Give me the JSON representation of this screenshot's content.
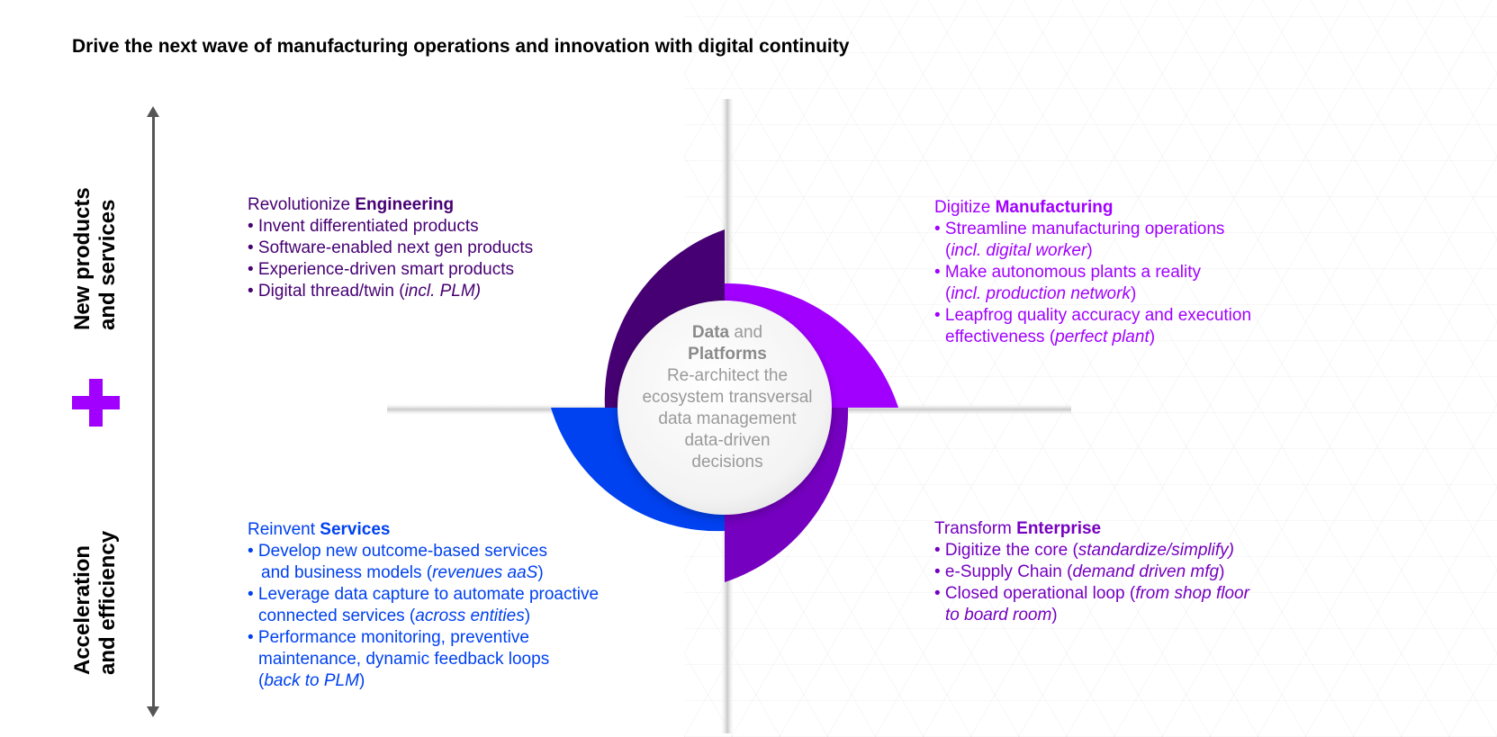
{
  "title": "Drive the next wave of manufacturing operations and innovation with digital continuity",
  "axis": {
    "top_label_line1": "New products",
    "top_label_line2": "and services",
    "bottom_label_line1": "Acceleration",
    "bottom_label_line2": "and efficiency",
    "plus_symbol": "+"
  },
  "center": {
    "bold1": "Data",
    "and": " and",
    "bold2": "Platforms",
    "line1": "Re-architect the",
    "line2": "ecosystem transversal",
    "line3": "data management",
    "line4": "data-driven",
    "line5": "decisions"
  },
  "engineering": {
    "prefix": "Revolutionize ",
    "name": "Engineering",
    "b1": "• Invent differentiated products",
    "b2": "• Software-enabled next gen products",
    "b3": "• Experience-driven smart products",
    "b4_text": "• Digital thread/twin (",
    "b4_italic": "incl. PLM)"
  },
  "manufacturing": {
    "prefix": "Digitize ",
    "name": "Manufacturing",
    "b1_line1": "• Streamline manufacturing operations",
    "b1_italic": "incl. digital worker",
    "b2_line1": "• Make autonomous plants a reality",
    "b2_italic": "incl. production network",
    "b3_line1": "• Leapfrog quality accuracy and execution",
    "b3_line2_text": "effectiveness (",
    "b3_italic": "perfect plant"
  },
  "services": {
    "prefix": "Reinvent ",
    "name": "Services",
    "b1_line1": "• Develop new outcome-based services",
    "b1_line2_text": "and business models (",
    "b1_italic": "revenues aaS",
    "b2_line1": "• Leverage data capture to automate proactive",
    "b2_line2_text": "connected services (",
    "b2_italic": "across entities",
    "b3_line1": "• Performance monitoring, preventive",
    "b3_line2": "maintenance, dynamic feedback loops",
    "b3_italic": "back to PLM"
  },
  "enterprise": {
    "prefix": "Transform ",
    "name": "Enterprise",
    "b1_text": "• Digitize the core (",
    "b1_italic": "standardize/simplify)",
    "b2_text": "• e-Supply Chain (",
    "b2_italic": "demand driven mfg",
    "b3_text": "• Closed operational loop (",
    "b3_italic1": "from shop floor",
    "b3_italic2": "to board room"
  },
  "colors": {
    "engineering": "#460073",
    "manufacturing": "#a100ff",
    "services": "#0041f0",
    "enterprise": "#7500c0"
  }
}
